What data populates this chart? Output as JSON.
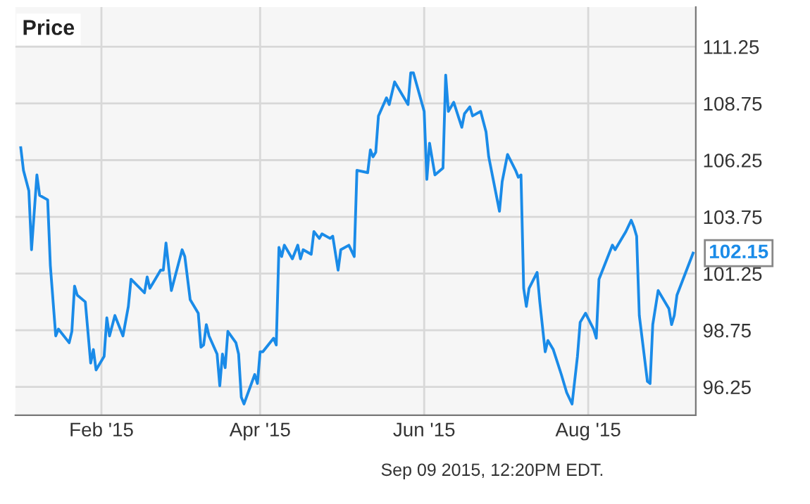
{
  "chart_data": {
    "type": "line",
    "title": "Price",
    "x": [
      "2015-01-02",
      "2015-01-03",
      "2015-01-05",
      "2015-01-06",
      "2015-01-08",
      "2015-01-09",
      "2015-01-12",
      "2015-01-13",
      "2015-01-15",
      "2015-01-16",
      "2015-01-20",
      "2015-01-21",
      "2015-01-22",
      "2015-01-23",
      "2015-01-26",
      "2015-01-28",
      "2015-01-29",
      "2015-01-30",
      "2015-02-02",
      "2015-02-03",
      "2015-02-04",
      "2015-02-06",
      "2015-02-09",
      "2015-02-11",
      "2015-02-12",
      "2015-02-17",
      "2015-02-18",
      "2015-02-19",
      "2015-02-21",
      "2015-02-23",
      "2015-02-24",
      "2015-02-25",
      "2015-02-27",
      "2015-03-03",
      "2015-03-04",
      "2015-03-06",
      "2015-03-09",
      "2015-03-10",
      "2015-03-11",
      "2015-03-12",
      "2015-03-13",
      "2015-03-16",
      "2015-03-17",
      "2015-03-18",
      "2015-03-19",
      "2015-03-20",
      "2015-03-23",
      "2015-03-24",
      "2015-03-25",
      "2015-03-26",
      "2015-03-30",
      "2015-03-31",
      "2015-04-01",
      "2015-04-02",
      "2015-04-06",
      "2015-04-07",
      "2015-04-08",
      "2015-04-09",
      "2015-04-10",
      "2015-04-13",
      "2015-04-15",
      "2015-04-16",
      "2015-04-17",
      "2015-04-20",
      "2015-04-21",
      "2015-04-23",
      "2015-04-24",
      "2015-04-27",
      "2015-04-28",
      "2015-04-30",
      "2015-05-01",
      "2015-05-04",
      "2015-05-06",
      "2015-05-07",
      "2015-05-11",
      "2015-05-12",
      "2015-05-13",
      "2015-05-14",
      "2015-05-15",
      "2015-05-18",
      "2015-05-19",
      "2015-05-21",
      "2015-05-22",
      "2015-05-26",
      "2015-05-27",
      "2015-05-28",
      "2015-06-01",
      "2015-06-02",
      "2015-06-03",
      "2015-06-05",
      "2015-06-08",
      "2015-06-09",
      "2015-06-10",
      "2015-06-12",
      "2015-06-15",
      "2015-06-16",
      "2015-06-18",
      "2015-06-19",
      "2015-06-22",
      "2015-06-24",
      "2015-06-25",
      "2015-06-29",
      "2015-06-30",
      "2015-07-02",
      "2015-07-05",
      "2015-07-06",
      "2015-07-07",
      "2015-07-08",
      "2015-07-09",
      "2015-07-10",
      "2015-07-13",
      "2015-07-14",
      "2015-07-16",
      "2015-07-17",
      "2015-07-19",
      "2015-07-22",
      "2015-07-24",
      "2015-07-26",
      "2015-07-28",
      "2015-07-29",
      "2015-07-31",
      "2015-08-03",
      "2015-08-04",
      "2015-08-05",
      "2015-08-06",
      "2015-08-10",
      "2015-08-11",
      "2015-08-15",
      "2015-08-17",
      "2015-08-18",
      "2015-08-19",
      "2015-08-20",
      "2015-08-23",
      "2015-08-24",
      "2015-08-25",
      "2015-08-27",
      "2015-08-31",
      "2015-09-01",
      "2015-09-02",
      "2015-09-03",
      "2015-09-09"
    ],
    "series": [
      {
        "color": "#1a8be8",
        "values": [
          106.8,
          105.8,
          104.9,
          102.3,
          105.6,
          104.7,
          104.5,
          101.6,
          98.5,
          98.8,
          98.2,
          98.7,
          100.7,
          100.3,
          100.0,
          97.3,
          97.9,
          97.0,
          97.6,
          99.3,
          98.5,
          99.4,
          98.5,
          99.8,
          101.0,
          100.4,
          101.1,
          100.6,
          101.0,
          101.4,
          101.4,
          102.6,
          100.5,
          102.3,
          102.0,
          100.1,
          99.5,
          98.0,
          98.1,
          99.0,
          98.5,
          97.7,
          96.3,
          97.7,
          97.1,
          98.7,
          98.2,
          97.7,
          95.8,
          95.5,
          96.8,
          96.4,
          97.8,
          97.8,
          98.4,
          98.1,
          102.4,
          102.0,
          102.5,
          101.9,
          102.5,
          101.9,
          102.3,
          102.1,
          103.1,
          102.8,
          103.0,
          102.8,
          102.9,
          101.4,
          102.3,
          102.5,
          102.0,
          105.8,
          105.7,
          106.7,
          106.4,
          106.6,
          108.2,
          109.0,
          108.7,
          109.7,
          109.5,
          108.7,
          110.1,
          110.1,
          108.4,
          105.4,
          107.0,
          105.6,
          105.9,
          110.0,
          108.4,
          108.8,
          107.7,
          108.3,
          108.6,
          108.2,
          108.4,
          107.5,
          106.4,
          104.0,
          105.3,
          106.5,
          105.8,
          105.5,
          105.6,
          100.6,
          99.8,
          100.6,
          101.3,
          100.0,
          97.8,
          98.3,
          97.9,
          96.8,
          96.0,
          95.5,
          97.6,
          99.1,
          99.5,
          98.8,
          98.4,
          101.0,
          101.3,
          102.5,
          102.3,
          103.1,
          103.6,
          103.3,
          102.9,
          99.4,
          96.5,
          96.4,
          99.0,
          100.5,
          99.7,
          99.0,
          99.4,
          100.3,
          102.15
        ]
      }
    ],
    "xlim": [
      "2014-12-31",
      "2015-09-10"
    ],
    "xticks": [
      {
        "value": "2015-02-01",
        "label": "Feb '15"
      },
      {
        "value": "2015-04-01",
        "label": "Apr '15"
      },
      {
        "value": "2015-06-01",
        "label": "Jun '15"
      },
      {
        "value": "2015-08-01",
        "label": "Aug '15"
      }
    ],
    "ylim": [
      95,
      113
    ],
    "yticks": [
      96.25,
      98.75,
      101.25,
      103.75,
      106.25,
      108.75,
      111.25
    ],
    "grid": true,
    "legend": false,
    "marker": "none",
    "line_style": "solid",
    "annotations": [
      {
        "text": "102.15",
        "x": "2015-09-09",
        "y": 102.15
      },
      "Sep 09 2015, 12:20PM EDT."
    ]
  }
}
